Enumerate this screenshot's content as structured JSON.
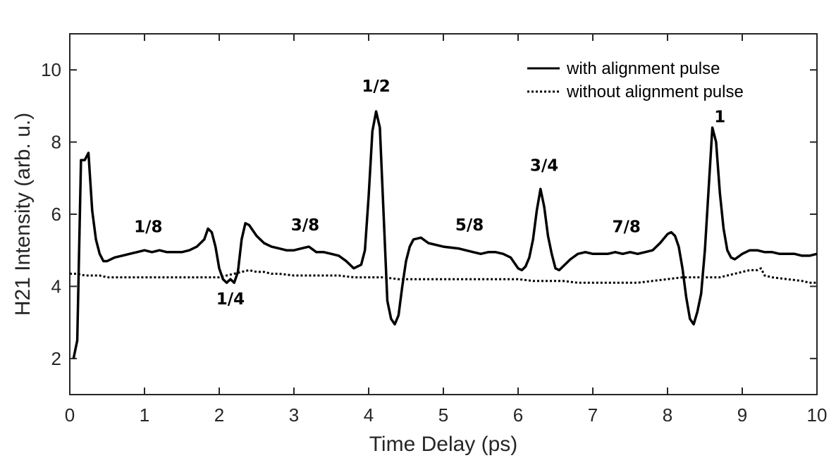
{
  "chart_data": {
    "type": "line",
    "title": "",
    "xlabel": "Time Delay (ps)",
    "ylabel": "H21 Intensity (arb. u.)",
    "xlim": [
      0,
      10
    ],
    "ylim": [
      1,
      11
    ],
    "xticks": [
      0,
      1,
      2,
      3,
      4,
      5,
      6,
      7,
      8,
      9,
      10
    ],
    "yticks": [
      2,
      4,
      6,
      8,
      10
    ],
    "grid": false,
    "legend_position": "top-right",
    "series": [
      {
        "name": "with alignment pulse",
        "style": "solid",
        "color": "#000000",
        "x": [
          0.05,
          0.1,
          0.15,
          0.2,
          0.25,
          0.3,
          0.35,
          0.4,
          0.45,
          0.5,
          0.6,
          0.7,
          0.8,
          0.9,
          1.0,
          1.1,
          1.2,
          1.3,
          1.4,
          1.5,
          1.6,
          1.7,
          1.8,
          1.85,
          1.9,
          1.95,
          2.0,
          2.05,
          2.1,
          2.15,
          2.2,
          2.25,
          2.3,
          2.35,
          2.4,
          2.5,
          2.6,
          2.7,
          2.8,
          2.9,
          3.0,
          3.1,
          3.2,
          3.3,
          3.4,
          3.5,
          3.6,
          3.7,
          3.8,
          3.9,
          3.95,
          4.0,
          4.05,
          4.1,
          4.15,
          4.2,
          4.25,
          4.3,
          4.35,
          4.4,
          4.45,
          4.5,
          4.55,
          4.6,
          4.7,
          4.8,
          5.0,
          5.2,
          5.3,
          5.4,
          5.5,
          5.6,
          5.7,
          5.8,
          5.9,
          6.0,
          6.05,
          6.1,
          6.15,
          6.2,
          6.25,
          6.3,
          6.35,
          6.4,
          6.45,
          6.5,
          6.55,
          6.6,
          6.7,
          6.8,
          6.9,
          7.0,
          7.1,
          7.2,
          7.3,
          7.4,
          7.5,
          7.6,
          7.7,
          7.8,
          7.9,
          8.0,
          8.05,
          8.1,
          8.15,
          8.2,
          8.25,
          8.3,
          8.35,
          8.4,
          8.45,
          8.5,
          8.55,
          8.6,
          8.65,
          8.7,
          8.75,
          8.8,
          8.85,
          8.9,
          9.0,
          9.1,
          9.2,
          9.3,
          9.4,
          9.5,
          9.6,
          9.7,
          9.8,
          9.9,
          10.0
        ],
        "values": [
          2.0,
          2.5,
          7.5,
          7.5,
          7.7,
          6.1,
          5.3,
          4.9,
          4.7,
          4.7,
          4.8,
          4.85,
          4.9,
          4.95,
          5.0,
          4.95,
          5.0,
          4.95,
          4.95,
          4.95,
          5.0,
          5.1,
          5.3,
          5.6,
          5.5,
          5.1,
          4.5,
          4.2,
          4.1,
          4.2,
          4.1,
          4.4,
          5.3,
          5.75,
          5.7,
          5.4,
          5.2,
          5.1,
          5.05,
          5.0,
          5.0,
          5.05,
          5.1,
          4.95,
          4.95,
          4.9,
          4.85,
          4.7,
          4.5,
          4.6,
          5.0,
          6.5,
          8.3,
          8.85,
          8.4,
          6.0,
          3.6,
          3.1,
          2.95,
          3.2,
          4.0,
          4.7,
          5.1,
          5.3,
          5.35,
          5.2,
          5.1,
          5.05,
          5.0,
          4.95,
          4.9,
          4.95,
          4.95,
          4.9,
          4.8,
          4.5,
          4.45,
          4.55,
          4.8,
          5.3,
          6.1,
          6.7,
          6.2,
          5.4,
          4.9,
          4.5,
          4.45,
          4.55,
          4.75,
          4.9,
          4.95,
          4.9,
          4.9,
          4.9,
          4.95,
          4.9,
          4.95,
          4.9,
          4.95,
          5.0,
          5.2,
          5.45,
          5.5,
          5.4,
          5.1,
          4.5,
          3.7,
          3.1,
          2.95,
          3.3,
          3.8,
          5.0,
          6.7,
          8.4,
          8.0,
          6.6,
          5.6,
          5.0,
          4.8,
          4.75,
          4.9,
          5.0,
          5.0,
          4.95,
          4.95,
          4.9,
          4.9,
          4.9,
          4.85,
          4.85,
          4.9
        ]
      },
      {
        "name": "without alignment pulse",
        "style": "dotted",
        "color": "#000000",
        "x": [
          0.0,
          0.1,
          0.2,
          0.3,
          0.4,
          0.5,
          0.6,
          0.7,
          0.8,
          0.9,
          1.0,
          1.2,
          1.4,
          1.6,
          1.8,
          2.0,
          2.1,
          2.2,
          2.3,
          2.4,
          2.5,
          2.6,
          2.7,
          2.8,
          3.0,
          3.2,
          3.4,
          3.6,
          3.8,
          4.0,
          4.2,
          4.4,
          4.6,
          4.8,
          5.0,
          5.2,
          5.4,
          5.6,
          5.8,
          6.0,
          6.2,
          6.4,
          6.6,
          6.8,
          7.0,
          7.2,
          7.4,
          7.6,
          7.8,
          8.0,
          8.2,
          8.4,
          8.5,
          8.6,
          8.7,
          8.8,
          8.9,
          9.0,
          9.1,
          9.2,
          9.25,
          9.3,
          9.4,
          9.6,
          9.8,
          9.9,
          10.0
        ],
        "values": [
          4.35,
          4.35,
          4.3,
          4.3,
          4.3,
          4.25,
          4.25,
          4.25,
          4.25,
          4.25,
          4.25,
          4.25,
          4.25,
          4.25,
          4.25,
          4.25,
          4.3,
          4.35,
          4.4,
          4.45,
          4.4,
          4.4,
          4.35,
          4.35,
          4.3,
          4.3,
          4.3,
          4.3,
          4.25,
          4.25,
          4.25,
          4.2,
          4.2,
          4.2,
          4.2,
          4.2,
          4.2,
          4.2,
          4.2,
          4.2,
          4.15,
          4.15,
          4.15,
          4.1,
          4.1,
          4.1,
          4.1,
          4.1,
          4.15,
          4.2,
          4.25,
          4.25,
          4.25,
          4.25,
          4.25,
          4.3,
          4.35,
          4.4,
          4.45,
          4.45,
          4.5,
          4.3,
          4.25,
          4.2,
          4.15,
          4.1,
          4.1
        ]
      }
    ],
    "annotations": [
      {
        "text": "1/8",
        "x": 1.05,
        "y": 5.5
      },
      {
        "text": "1/4",
        "x": 2.15,
        "y": 3.5
      },
      {
        "text": "3/8",
        "x": 3.15,
        "y": 5.55
      },
      {
        "text": "1/2",
        "x": 4.1,
        "y": 9.4
      },
      {
        "text": "5/8",
        "x": 5.35,
        "y": 5.55
      },
      {
        "text": "3/4",
        "x": 6.35,
        "y": 7.2
      },
      {
        "text": "7/8",
        "x": 7.45,
        "y": 5.5
      },
      {
        "text": "1",
        "x": 8.7,
        "y": 8.55
      }
    ]
  }
}
